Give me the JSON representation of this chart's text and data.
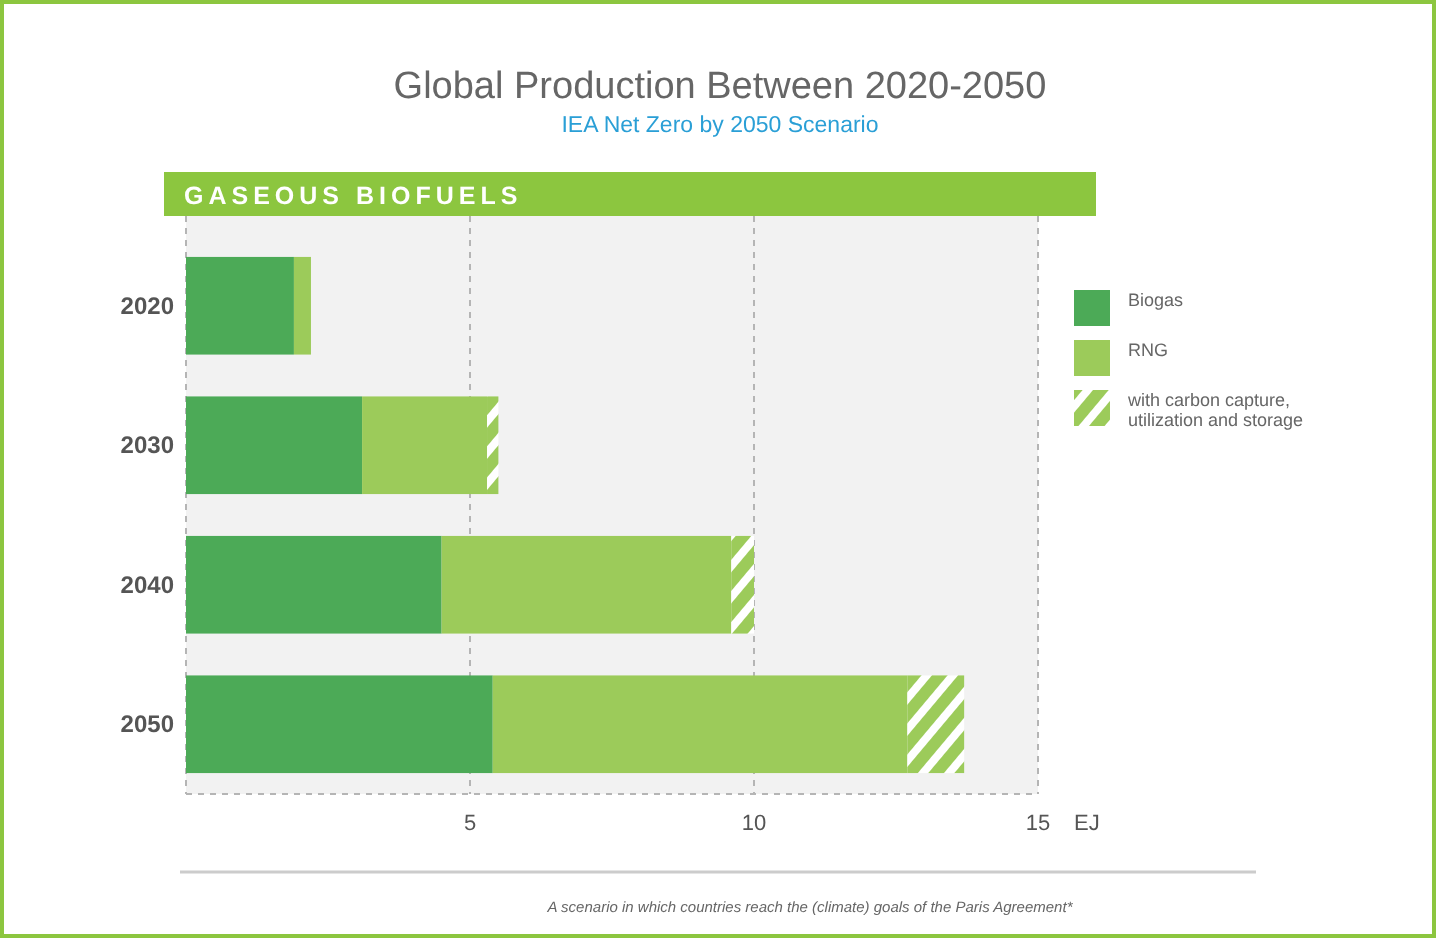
{
  "chart_data": {
    "type": "bar",
    "title": "Global Production Between 2020-2050",
    "subtitle": "IEA Net Zero by 2050 Scenario",
    "xlabel": "EJ",
    "orientation": "horizontal",
    "stacked": true,
    "categories": [
      "2020",
      "2030",
      "2040",
      "2050"
    ],
    "series": [
      {
        "name": "Biogas",
        "color": "#4caa57",
        "values": [
          1.9,
          3.1,
          4.5,
          5.4
        ]
      },
      {
        "name": "RNG",
        "color": "#9ccb5a",
        "values": [
          0.3,
          2.2,
          5.1,
          7.3
        ]
      },
      {
        "name": "with carbon capture, utilization and storage",
        "color": "#9ccb5a",
        "values": [
          null,
          0.2,
          0.4,
          1.0
        ]
      }
    ],
    "xlim": [
      0,
      15
    ],
    "xticks": [
      {
        "value": 0,
        "label": null
      },
      5,
      10,
      15
    ],
    "grid": "x",
    "legend": "right",
    "annotations": [
      "GASEOUS BIOFUELS",
      "A scenario in which countries reach the (climate) goals of the Paris Agreement*"
    ]
  }
}
